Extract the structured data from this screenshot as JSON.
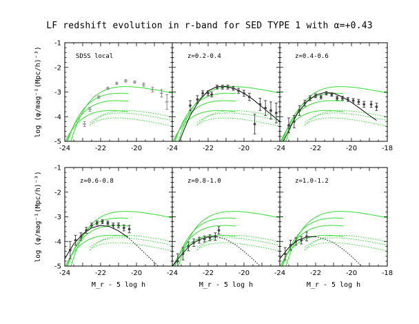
{
  "figure": {
    "title": "LF redshift evolution in r-band for SED TYPE 1 with α=+0.43"
  },
  "colors": {
    "model_curves": "#33dd33",
    "fit_curve": "#000000",
    "data_points": "#444444",
    "sdss_points": "#888888"
  },
  "chart_data": [
    {
      "type": "line",
      "panel": "SDSS local",
      "xlim": [
        -24,
        -18
      ],
      "ylim": [
        -5,
        -1
      ],
      "xlabel": "",
      "ylabel": "log (φ/mag⁻¹(Mpc/h)⁻³)",
      "x_ticks": [
        "-24",
        "-22",
        "-20",
        "-18"
      ],
      "y_ticks": [
        "-5",
        "-4",
        "-3",
        "-2",
        "-1"
      ],
      "points": [
        {
          "x": -22.9,
          "y": -4.3,
          "err": 0.1
        },
        {
          "x": -22.6,
          "y": -3.7,
          "err": 0.08
        },
        {
          "x": -22.1,
          "y": -3.2,
          "err": 0.05
        },
        {
          "x": -21.6,
          "y": -2.85,
          "err": 0.05
        },
        {
          "x": -21.1,
          "y": -2.65,
          "err": 0.05
        },
        {
          "x": -20.6,
          "y": -2.55,
          "err": 0.05
        },
        {
          "x": -20.1,
          "y": -2.6,
          "err": 0.05
        },
        {
          "x": -19.6,
          "y": -2.7,
          "err": 0.07
        },
        {
          "x": -19.1,
          "y": -2.9,
          "err": 0.1
        },
        {
          "x": -18.6,
          "y": -3.05,
          "err": 0.15
        },
        {
          "x": -18.3,
          "y": -3.4,
          "err": 0.3
        }
      ],
      "fit": []
    },
    {
      "type": "line",
      "panel": "z=0.2-0.4",
      "xlim": [
        -24,
        -18
      ],
      "ylim": [
        -5,
        -1
      ],
      "xlabel": "",
      "ylabel": "",
      "x_ticks": [
        "-24",
        "-22",
        "-20",
        "-18"
      ],
      "y_ticks": [
        "-5",
        "-4",
        "-3",
        "-2",
        "-1"
      ],
      "points": [
        {
          "x": -23.0,
          "y": -3.55,
          "err": 0.2
        },
        {
          "x": -22.6,
          "y": -3.3,
          "err": 0.15
        },
        {
          "x": -22.3,
          "y": -3.05,
          "err": 0.1
        },
        {
          "x": -22.0,
          "y": -3.05,
          "err": 0.1
        },
        {
          "x": -21.8,
          "y": -3.1,
          "err": 0.1
        },
        {
          "x": -21.5,
          "y": -2.8,
          "err": 0.08
        },
        {
          "x": -21.2,
          "y": -2.8,
          "err": 0.08
        },
        {
          "x": -20.9,
          "y": -2.8,
          "err": 0.08
        },
        {
          "x": -20.6,
          "y": -2.85,
          "err": 0.08
        },
        {
          "x": -20.3,
          "y": -2.95,
          "err": 0.1
        },
        {
          "x": -20.0,
          "y": -3.05,
          "err": 0.12
        },
        {
          "x": -19.7,
          "y": -3.2,
          "err": 0.15
        },
        {
          "x": -19.4,
          "y": -4.3,
          "err": 0.4
        },
        {
          "x": -19.1,
          "y": -3.5,
          "err": 0.25
        },
        {
          "x": -18.8,
          "y": -3.65,
          "err": 0.3
        },
        {
          "x": -18.5,
          "y": -3.75,
          "err": 0.35
        },
        {
          "x": -18.2,
          "y": -3.85,
          "err": 0.4
        }
      ],
      "fit": [
        [
          -23.6,
          -5.0
        ],
        [
          -23.3,
          -4.45
        ],
        [
          -23.0,
          -3.95
        ],
        [
          -22.5,
          -3.35
        ],
        [
          -22.0,
          -2.95
        ],
        [
          -21.5,
          -2.78
        ],
        [
          -21.0,
          -2.77
        ],
        [
          -20.5,
          -2.87
        ],
        [
          -20.0,
          -3.05
        ],
        [
          -19.5,
          -3.3
        ],
        [
          -19.0,
          -3.6
        ],
        [
          -18.5,
          -3.9
        ],
        [
          -18.0,
          -4.2
        ]
      ]
    },
    {
      "type": "line",
      "panel": "z=0.4-0.6",
      "xlim": [
        -24,
        -18
      ],
      "ylim": [
        -5,
        -1
      ],
      "xlabel": "",
      "ylabel": "",
      "x_ticks": [
        "-24",
        "-22",
        "-20",
        "-18"
      ],
      "y_ticks": [
        "-5",
        "-4",
        "-3",
        "-2",
        "-1"
      ],
      "points": [
        {
          "x": -23.5,
          "y": -4.35,
          "err": 0.3
        },
        {
          "x": -23.2,
          "y": -4.2,
          "err": 0.25
        },
        {
          "x": -22.9,
          "y": -3.75,
          "err": 0.2
        },
        {
          "x": -22.6,
          "y": -3.45,
          "err": 0.12
        },
        {
          "x": -22.3,
          "y": -3.25,
          "err": 0.1
        },
        {
          "x": -22.0,
          "y": -3.15,
          "err": 0.08
        },
        {
          "x": -21.7,
          "y": -3.2,
          "err": 0.08
        },
        {
          "x": -21.4,
          "y": -3.05,
          "err": 0.07
        },
        {
          "x": -21.1,
          "y": -3.1,
          "err": 0.07
        },
        {
          "x": -20.8,
          "y": -3.25,
          "err": 0.08
        },
        {
          "x": -20.5,
          "y": -3.25,
          "err": 0.08
        },
        {
          "x": -20.2,
          "y": -3.3,
          "err": 0.08
        },
        {
          "x": -19.9,
          "y": -3.35,
          "err": 0.09
        },
        {
          "x": -19.6,
          "y": -3.4,
          "err": 0.1
        },
        {
          "x": -19.3,
          "y": -3.5,
          "err": 0.12
        },
        {
          "x": -18.9,
          "y": -3.5,
          "err": 0.12
        },
        {
          "x": -18.6,
          "y": -3.6,
          "err": 0.15
        }
      ],
      "fit": [
        [
          -23.8,
          -5.0
        ],
        [
          -23.4,
          -4.4
        ],
        [
          -23.0,
          -3.85
        ],
        [
          -22.5,
          -3.4
        ],
        [
          -22.0,
          -3.12
        ],
        [
          -21.5,
          -3.02
        ],
        [
          -21.0,
          -3.05
        ],
        [
          -20.5,
          -3.2
        ],
        [
          -20.0,
          -3.42
        ],
        [
          -19.5,
          -3.68
        ],
        [
          -19.0,
          -3.95
        ],
        [
          -18.6,
          -4.15
        ]
      ]
    },
    {
      "type": "line",
      "panel": "z=0.6-0.8",
      "xlim": [
        -24,
        -18
      ],
      "ylim": [
        -5,
        -1
      ],
      "xlabel": "M_r - 5 log h",
      "ylabel": "log (φ/mag⁻¹(Mpc/h)⁻³)",
      "x_ticks": [
        "-24",
        "-22",
        "-20",
        "-18"
      ],
      "y_ticks": [
        "-5",
        "-4",
        "-3",
        "-2",
        "-1"
      ],
      "points": [
        {
          "x": -23.7,
          "y": -4.35,
          "err": 0.35
        },
        {
          "x": -23.4,
          "y": -3.95,
          "err": 0.2
        },
        {
          "x": -23.1,
          "y": -3.8,
          "err": 0.15
        },
        {
          "x": -22.8,
          "y": -3.55,
          "err": 0.12
        },
        {
          "x": -22.5,
          "y": -3.35,
          "err": 0.1
        },
        {
          "x": -22.2,
          "y": -3.25,
          "err": 0.08
        },
        {
          "x": -21.9,
          "y": -3.2,
          "err": 0.08
        },
        {
          "x": -21.6,
          "y": -3.25,
          "err": 0.08
        },
        {
          "x": -21.3,
          "y": -3.35,
          "err": 0.1
        },
        {
          "x": -21.0,
          "y": -3.35,
          "err": 0.1
        },
        {
          "x": -20.7,
          "y": -3.45,
          "err": 0.12
        },
        {
          "x": -20.4,
          "y": -3.5,
          "err": 0.15
        }
      ],
      "fit": [
        [
          -24.0,
          -4.7
        ],
        [
          -23.5,
          -4.1
        ],
        [
          -23.0,
          -3.7
        ],
        [
          -22.5,
          -3.45
        ],
        [
          -22.0,
          -3.35
        ],
        [
          -21.5,
          -3.4
        ],
        [
          -21.0,
          -3.57
        ],
        [
          -20.5,
          -3.82
        ]
      ],
      "fit_dotted": [
        [
          -20.5,
          -3.82
        ],
        [
          -20.0,
          -4.15
        ],
        [
          -19.5,
          -4.5
        ],
        [
          -19.0,
          -4.85
        ],
        [
          -18.8,
          -5.0
        ]
      ]
    },
    {
      "type": "line",
      "panel": "z=0.8-1.0",
      "xlim": [
        -24,
        -18
      ],
      "ylim": [
        -5,
        -1
      ],
      "xlabel": "M_r - 5 log h",
      "ylabel": "",
      "x_ticks": [
        "-24",
        "-22",
        "-20",
        "-18"
      ],
      "y_ticks": [
        "-5",
        "-4",
        "-3",
        "-2",
        "-1"
      ],
      "points": [
        {
          "x": -23.7,
          "y": -4.8,
          "err": 0.3
        },
        {
          "x": -23.4,
          "y": -4.5,
          "err": 0.25
        },
        {
          "x": -23.1,
          "y": -4.2,
          "err": 0.18
        },
        {
          "x": -22.8,
          "y": -4.05,
          "err": 0.15
        },
        {
          "x": -22.5,
          "y": -3.95,
          "err": 0.12
        },
        {
          "x": -22.2,
          "y": -3.9,
          "err": 0.12
        },
        {
          "x": -21.9,
          "y": -3.85,
          "err": 0.12
        },
        {
          "x": -21.6,
          "y": -3.8,
          "err": 0.15
        },
        {
          "x": -21.4,
          "y": -3.55,
          "err": 0.15
        }
      ],
      "fit": [
        [
          -24.0,
          -5.0
        ],
        [
          -23.5,
          -4.55
        ],
        [
          -23.0,
          -4.15
        ],
        [
          -22.5,
          -3.93
        ],
        [
          -22.0,
          -3.82
        ],
        [
          -21.5,
          -3.8
        ]
      ],
      "fit_dotted": [
        [
          -21.5,
          -3.8
        ],
        [
          -21.0,
          -3.92
        ],
        [
          -20.5,
          -4.12
        ],
        [
          -20.0,
          -4.4
        ],
        [
          -19.5,
          -4.72
        ],
        [
          -19.1,
          -5.0
        ]
      ]
    },
    {
      "type": "line",
      "panel": "z=1.0-1.2",
      "xlim": [
        -24,
        -18
      ],
      "ylim": [
        -5,
        -1
      ],
      "xlabel": "M_r - 5 log h",
      "ylabel": "",
      "x_ticks": [
        "-24",
        "-22",
        "-20",
        "-18"
      ],
      "y_ticks": [
        "-5",
        "-4",
        "-3",
        "-2",
        "-1"
      ],
      "points": [
        {
          "x": -23.7,
          "y": -4.5,
          "err": 0.25
        },
        {
          "x": -23.4,
          "y": -4.15,
          "err": 0.2
        },
        {
          "x": -23.1,
          "y": -4.0,
          "err": 0.15
        },
        {
          "x": -22.8,
          "y": -3.95,
          "err": 0.15
        },
        {
          "x": -22.5,
          "y": -3.8,
          "err": 0.18
        }
      ],
      "fit": [
        [
          -24.0,
          -4.7
        ],
        [
          -23.5,
          -4.25
        ],
        [
          -23.0,
          -3.95
        ],
        [
          -22.5,
          -3.82
        ],
        [
          -22.0,
          -3.8
        ]
      ],
      "fit_dotted": [
        [
          -22.0,
          -3.8
        ],
        [
          -21.5,
          -3.9
        ],
        [
          -21.0,
          -4.05
        ],
        [
          -20.5,
          -4.3
        ],
        [
          -20.0,
          -4.6
        ],
        [
          -19.5,
          -4.95
        ],
        [
          -19.4,
          -5.0
        ]
      ]
    }
  ],
  "model_curves": {
    "solid": [
      {
        "peak_x": -21.6,
        "peak_y": -2.78,
        "alpha": -0.6
      },
      {
        "peak_x": -21.9,
        "peak_y": -3.05,
        "alpha": -0.6
      },
      {
        "peak_x": -22.1,
        "peak_y": -3.35,
        "alpha": -0.6
      },
      {
        "peak_x": -22.4,
        "peak_y": -3.75,
        "alpha": -0.6
      }
    ],
    "dotted": [
      {
        "peak_x": -21.6,
        "peak_y": -3.75,
        "alpha": -0.6
      },
      {
        "peak_x": -21.9,
        "peak_y": -3.85,
        "alpha": -0.6
      },
      {
        "peak_x": -22.1,
        "peak_y": -4.05,
        "alpha": -0.6
      }
    ],
    "dotted_from": -22.0
  }
}
